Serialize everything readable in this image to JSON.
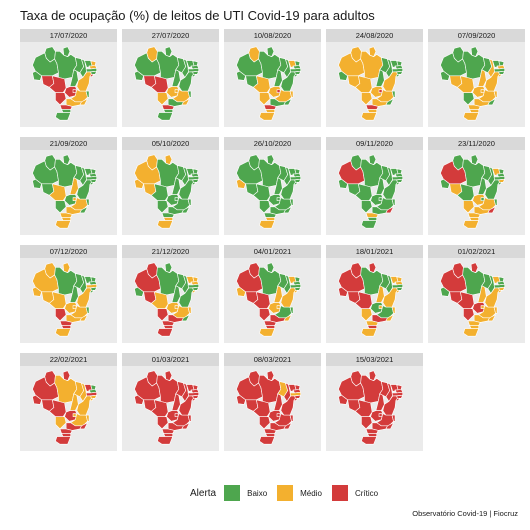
{
  "title": "Taxa de ocupação (%) de leitos de UTI Covid-19 para adultos",
  "colors": {
    "baixo": "#4ea64e",
    "medio": "#f3b02f",
    "critico": "#d33b3b",
    "panel_bg": "#ebebeb",
    "strip_bg": "#d9d9d9",
    "border": "#ffffff"
  },
  "state_order": [
    "RR",
    "AP",
    "AM",
    "PA",
    "AC",
    "RO",
    "MT",
    "TO",
    "MA",
    "PI",
    "CE",
    "RN",
    "PB",
    "PE",
    "AL",
    "SE",
    "BA",
    "GO",
    "DF",
    "MS",
    "MG",
    "ES",
    "RJ",
    "SP",
    "PR",
    "SC",
    "RS"
  ],
  "panels": [
    {
      "date": "17/07/2020",
      "status": [
        "B",
        "B",
        "B",
        "B",
        "B",
        "C",
        "C",
        "B",
        "B",
        "B",
        "B",
        "M",
        "M",
        "B",
        "B",
        "C",
        "M",
        "C",
        "C",
        "C",
        "M",
        "B",
        "M",
        "M",
        "C",
        "B",
        "B"
      ]
    },
    {
      "date": "27/07/2020",
      "status": [
        "M",
        "B",
        "B",
        "B",
        "B",
        "C",
        "C",
        "B",
        "B",
        "B",
        "B",
        "B",
        "B",
        "B",
        "B",
        "B",
        "B",
        "M",
        "M",
        "M",
        "M",
        "B",
        "M",
        "B",
        "C",
        "B",
        "B"
      ]
    },
    {
      "date": "10/08/2020",
      "status": [
        "M",
        "B",
        "B",
        "B",
        "B",
        "B",
        "M",
        "B",
        "B",
        "B",
        "M",
        "B",
        "B",
        "B",
        "B",
        "B",
        "B",
        "M",
        "C",
        "M",
        "M",
        "M",
        "B",
        "B",
        "C",
        "M",
        "M"
      ]
    },
    {
      "date": "24/08/2020",
      "status": [
        "M",
        "M",
        "M",
        "M",
        "B",
        "M",
        "M",
        "B",
        "B",
        "B",
        "B",
        "B",
        "B",
        "B",
        "B",
        "B",
        "M",
        "M",
        "C",
        "M",
        "M",
        "B",
        "B",
        "M",
        "C",
        "M",
        "M"
      ]
    },
    {
      "date": "07/09/2020",
      "status": [
        "B",
        "B",
        "B",
        "B",
        "B",
        "M",
        "M",
        "M",
        "B",
        "M",
        "B",
        "B",
        "M",
        "B",
        "B",
        "M",
        "M",
        "M",
        "M",
        "B",
        "M",
        "M",
        "B",
        "M",
        "M",
        "M",
        "M"
      ]
    },
    {
      "date": "21/09/2020",
      "status": [
        "B",
        "B",
        "B",
        "B",
        "B",
        "B",
        "M",
        "M",
        "B",
        "B",
        "B",
        "B",
        "B",
        "B",
        "B",
        "B",
        "B",
        "B",
        "M",
        "B",
        "M",
        "B",
        "B",
        "M",
        "M",
        "M",
        "M"
      ]
    },
    {
      "date": "05/10/2020",
      "status": [
        "M",
        "M",
        "M",
        "B",
        "M",
        "M",
        "B",
        "B",
        "B",
        "B",
        "B",
        "B",
        "B",
        "B",
        "B",
        "B",
        "B",
        "B",
        "B",
        "B",
        "B",
        "B",
        "B",
        "B",
        "B",
        "M",
        "M"
      ]
    },
    {
      "date": "26/10/2020",
      "status": [
        "B",
        "B",
        "B",
        "B",
        "M",
        "B",
        "B",
        "B",
        "B",
        "B",
        "B",
        "B",
        "B",
        "B",
        "B",
        "B",
        "B",
        "B",
        "B",
        "B",
        "B",
        "B",
        "B",
        "B",
        "B",
        "M",
        "M"
      ]
    },
    {
      "date": "09/11/2020",
      "status": [
        "B",
        "B",
        "C",
        "B",
        "B",
        "B",
        "B",
        "B",
        "B",
        "B",
        "B",
        "B",
        "B",
        "B",
        "B",
        "B",
        "B",
        "B",
        "B",
        "B",
        "B",
        "B",
        "C",
        "B",
        "M",
        "B",
        "B"
      ]
    },
    {
      "date": "23/11/2020",
      "status": [
        "B",
        "B",
        "C",
        "B",
        "B",
        "M",
        "B",
        "B",
        "B",
        "B",
        "M",
        "B",
        "B",
        "B",
        "M",
        "B",
        "B",
        "M",
        "B",
        "M",
        "M",
        "B",
        "C",
        "M",
        "M",
        "M",
        "M"
      ]
    },
    {
      "date": "07/12/2020",
      "status": [
        "M",
        "M",
        "M",
        "B",
        "M",
        "M",
        "M",
        "B",
        "B",
        "B",
        "B",
        "B",
        "B",
        "M",
        "B",
        "B",
        "M",
        "M",
        "M",
        "C",
        "M",
        "B",
        "M",
        "M",
        "C",
        "C",
        "M"
      ]
    },
    {
      "date": "21/12/2020",
      "status": [
        "C",
        "B",
        "C",
        "B",
        "B",
        "C",
        "M",
        "B",
        "B",
        "B",
        "M",
        "M",
        "M",
        "B",
        "B",
        "M",
        "B",
        "M",
        "M",
        "C",
        "M",
        "M",
        "B",
        "C",
        "C",
        "C",
        "C"
      ]
    },
    {
      "date": "04/01/2021",
      "status": [
        "C",
        "B",
        "C",
        "B",
        "M",
        "C",
        "C",
        "M",
        "B",
        "B",
        "M",
        "B",
        "B",
        "B",
        "B",
        "M",
        "M",
        "M",
        "M",
        "C",
        "B",
        "B",
        "M",
        "C",
        "C",
        "C",
        "M"
      ]
    },
    {
      "date": "18/01/2021",
      "status": [
        "C",
        "C",
        "C",
        "B",
        "C",
        "C",
        "C",
        "M",
        "B",
        "B",
        "M",
        "M",
        "M",
        "B",
        "B",
        "M",
        "M",
        "B",
        "M",
        "M",
        "B",
        "M",
        "M",
        "C",
        "M",
        "C",
        "M"
      ]
    },
    {
      "date": "01/02/2021",
      "status": [
        "C",
        "C",
        "C",
        "B",
        "B",
        "C",
        "C",
        "M",
        "B",
        "B",
        "M",
        "B",
        "B",
        "B",
        "M",
        "M",
        "M",
        "C",
        "M",
        "C",
        "M",
        "M",
        "M",
        "M",
        "M",
        "M",
        "M"
      ]
    },
    {
      "date": "22/02/2021",
      "status": [
        "C",
        "C",
        "C",
        "M",
        "C",
        "C",
        "C",
        "M",
        "M",
        "M",
        "C",
        "B",
        "B",
        "C",
        "M",
        "M",
        "M",
        "C",
        "M",
        "M",
        "M",
        "M",
        "C",
        "C",
        "C",
        "C",
        "C"
      ]
    },
    {
      "date": "01/03/2021",
      "status": [
        "C",
        "C",
        "C",
        "C",
        "C",
        "C",
        "C",
        "C",
        "C",
        "C",
        "C",
        "C",
        "C",
        "C",
        "C",
        "C",
        "C",
        "C",
        "C",
        "C",
        "C",
        "C",
        "C",
        "C",
        "C",
        "C",
        "C"
      ]
    },
    {
      "date": "08/03/2021",
      "status": [
        "C",
        "C",
        "C",
        "C",
        "C",
        "C",
        "C",
        "C",
        "M",
        "C",
        "C",
        "C",
        "C",
        "M",
        "C",
        "C",
        "C",
        "C",
        "C",
        "C",
        "C",
        "C",
        "C",
        "C",
        "C",
        "C",
        "C"
      ]
    },
    {
      "date": "15/03/2021",
      "status": [
        "C",
        "C",
        "C",
        "C",
        "C",
        "C",
        "C",
        "C",
        "C",
        "C",
        "C",
        "C",
        "C",
        "C",
        "C",
        "C",
        "C",
        "C",
        "C",
        "C",
        "C",
        "C",
        "C",
        "C",
        "C",
        "C",
        "C"
      ]
    }
  ],
  "legend": {
    "title": "Alerta",
    "items": [
      {
        "key": "B",
        "label": "Baixo",
        "color": "#4ea64e"
      },
      {
        "key": "M",
        "label": "Médio",
        "color": "#f3b02f"
      },
      {
        "key": "C",
        "label": "Crítico",
        "color": "#d33b3b"
      }
    ]
  },
  "credit": "Observatório Covid-19 | Fiocruz"
}
